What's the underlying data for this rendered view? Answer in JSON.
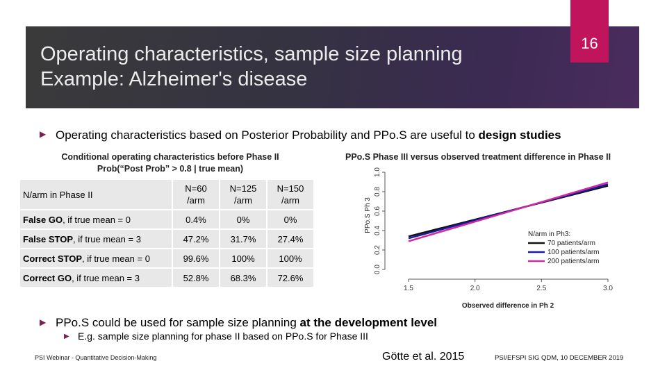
{
  "slide": {
    "title_line1": "Operating characteristics, sample size planning",
    "title_line2": "Example: Alzheimer's disease",
    "slide_number": "16"
  },
  "bullets": {
    "b1_text": "Operating characteristics based on Posterior Probability and PPo.S are useful to ",
    "b1_bold": "design studies",
    "b2_text": "PPo.S could be used for sample size planning ",
    "b2_bold": "at the development level",
    "b3_text": "E.g. sample size planning for phase II based on PPo.S for Phase III"
  },
  "table": {
    "heading_line1": "Conditional operating characteristics before Phase II",
    "heading_line2": "Prob(“Post Prob” > 0.8 | true mean)",
    "header_label": "N/arm in Phase II",
    "columns": [
      {
        "line1": "N=60",
        "line2": "/arm"
      },
      {
        "line1": "N=125",
        "line2": "/arm"
      },
      {
        "line1": "N=150",
        "line2": "/arm"
      }
    ],
    "rows": [
      {
        "bold": "False GO",
        "rest": ", if true mean = 0",
        "values": [
          "0.4%",
          "0%",
          "0%"
        ]
      },
      {
        "bold": "False STOP",
        "rest": ", if true mean = 3",
        "values": [
          "47.2%",
          "31.7%",
          "27.4%"
        ]
      },
      {
        "bold": "Correct STOP",
        "rest": ", if true mean = 0",
        "values": [
          "99.6%",
          "100%",
          "100%"
        ]
      },
      {
        "bold": "Correct GO",
        "rest": ", if true mean = 3",
        "values": [
          "52.8%",
          "68.3%",
          "72.6%"
        ]
      }
    ]
  },
  "chart_data": {
    "type": "line",
    "title": "PPo.S Phase III versus observed treatment difference in Phase II",
    "xlabel": "Observed difference in Ph 2",
    "ylabel": "PPo.S Ph 3",
    "xlim": [
      1.5,
      3.0
    ],
    "ylim": [
      0.0,
      1.0
    ],
    "xticks": [
      "1.5",
      "2.0",
      "2.5",
      "3.0"
    ],
    "yticks": [
      "0.0",
      "0.2",
      "0.4",
      "0.6",
      "0.8",
      "1.0"
    ],
    "legend_title": "N/arm in Ph3:",
    "legend_position": "bottom-right",
    "series": [
      {
        "name": "70 patients/arm",
        "color": "#111111",
        "x": [
          1.5,
          3.0
        ],
        "y": [
          0.34,
          0.86
        ]
      },
      {
        "name": "100 patients/arm",
        "color": "#1a1a9c",
        "x": [
          1.5,
          3.0
        ],
        "y": [
          0.32,
          0.875
        ]
      },
      {
        "name": "200 patients/arm",
        "color": "#d12aa0",
        "x": [
          1.5,
          3.0
        ],
        "y": [
          0.29,
          0.895
        ]
      }
    ]
  },
  "footer": {
    "left": "PSI Webinar - Quantitative Decision-Making",
    "middle": "Götte et al. 2015",
    "right": "PSI/EFSPI SIG QDM, 10 DECEMBER 2019"
  },
  "colors": {
    "accent": "#c0145c",
    "bullet": "#7a1f4f",
    "table_cell": "#e8e8e8"
  }
}
